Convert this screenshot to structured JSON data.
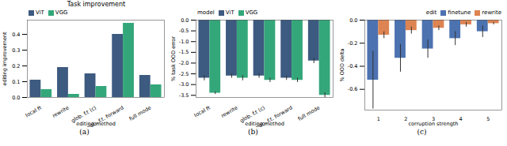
{
  "chart_data": [
    {
      "type": "bar",
      "title": "Task improvement",
      "caption": "(a)",
      "xlabel": "editing method",
      "ylabel": "editing improvement",
      "categories": [
        "local ft",
        "rewrite",
        "glob. f.t (c)",
        "glob. f.t. forward",
        "full mode"
      ],
      "series": [
        {
          "name": "ViT",
          "color": "#3d5a80",
          "values": [
            0.11,
            0.19,
            0.15,
            0.4,
            0.14
          ]
        },
        {
          "name": "VGG",
          "color": "#34a77a",
          "values": [
            0.05,
            0.02,
            0.07,
            0.47,
            0.08
          ]
        }
      ],
      "ylim": [
        0,
        0.49
      ],
      "yticks": [
        {
          "value": 0,
          "label": "0.0"
        },
        0.1,
        0.2,
        0.3,
        0.4
      ],
      "legend": "upper left"
    },
    {
      "type": "bar",
      "caption": "(b)",
      "xlabel": "editing method",
      "ylabel": "% task OOD error",
      "categories": [
        "local ft",
        "rewrite",
        "glob. f.t (c)",
        "glob. f.t. forward",
        "full mode"
      ],
      "series": [
        {
          "name": "ViT",
          "color": "#3d5a80",
          "values": [
            -2.7,
            -2.6,
            -2.6,
            -2.7,
            -1.9
          ],
          "errors": [
            0.12,
            0.1,
            0.1,
            0.1,
            0.12
          ]
        },
        {
          "name": "VGG",
          "color": "#34a77a",
          "values": [
            -3.4,
            -2.7,
            -2.8,
            -2.8,
            -3.5
          ],
          "errors": [
            0.06,
            0.12,
            0.1,
            0.1,
            0.12
          ]
        }
      ],
      "ylim": [
        -3.6,
        0
      ],
      "yticks": [
        {
          "value": 0,
          "label": "0.0"
        },
        -0.5,
        {
          "value": -1,
          "label": "-1.0"
        },
        -1.5,
        {
          "value": -2,
          "label": "-2.0"
        },
        -2.5,
        {
          "value": -3,
          "label": "-3.0"
        },
        -3.5
      ],
      "legend": "upper left",
      "legend_title": "model"
    },
    {
      "type": "bar",
      "caption": "(c)",
      "xlabel": "corruption strength",
      "ylabel": "% OOD delta",
      "categories": [
        "1",
        "2",
        "3",
        "4",
        "5"
      ],
      "series": [
        {
          "name": "finetune",
          "color": "#4c72b0",
          "values": [
            -0.52,
            -0.33,
            -0.25,
            -0.16,
            -0.1
          ],
          "errors": [
            0.25,
            0.12,
            0.08,
            0.06,
            0.05
          ]
        },
        {
          "name": "rewrite",
          "color": "#dd8452",
          "values": [
            -0.13,
            -0.09,
            -0.07,
            -0.04,
            -0.03
          ],
          "errors": [
            0.03,
            0.03,
            0.02,
            0.02,
            0.01
          ]
        }
      ],
      "ylim": [
        -0.78,
        0
      ],
      "yticks": [
        {
          "value": 0,
          "label": "0.0"
        },
        -0.2,
        -0.4,
        -0.6
      ],
      "legend": "upper right",
      "legend_title": "edit"
    }
  ]
}
